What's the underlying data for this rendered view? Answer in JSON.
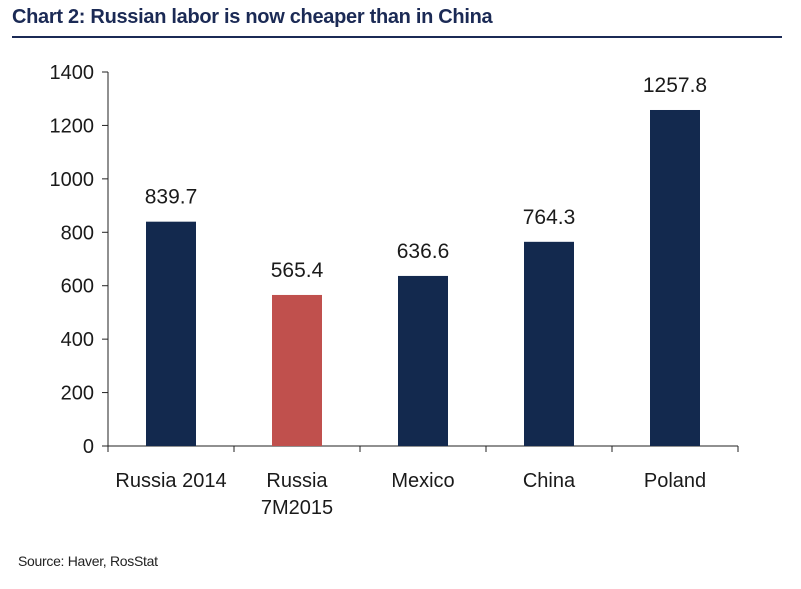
{
  "title": "Chart 2: Russian labor is now cheaper than in China",
  "source": "Source: Haver, RosStat",
  "colors": {
    "primary": "#13294e",
    "highlight": "#c0504d",
    "title": "#1b2a55"
  },
  "chart_data": {
    "type": "bar",
    "categories": [
      [
        "Russia 2014"
      ],
      [
        "Russia",
        "7M2015"
      ],
      [
        "Mexico"
      ],
      [
        "China"
      ],
      [
        "Poland"
      ]
    ],
    "values": [
      839.7,
      565.4,
      636.6,
      764.3,
      1257.8
    ],
    "data_labels": [
      "839.7",
      "565.4",
      "636.6",
      "764.3",
      "1257.8"
    ],
    "highlight_index": 1,
    "ylim": [
      0,
      1400
    ],
    "yticks": [
      0,
      200,
      400,
      600,
      800,
      1000,
      1200,
      1400
    ],
    "grid": false,
    "legend": "none"
  }
}
